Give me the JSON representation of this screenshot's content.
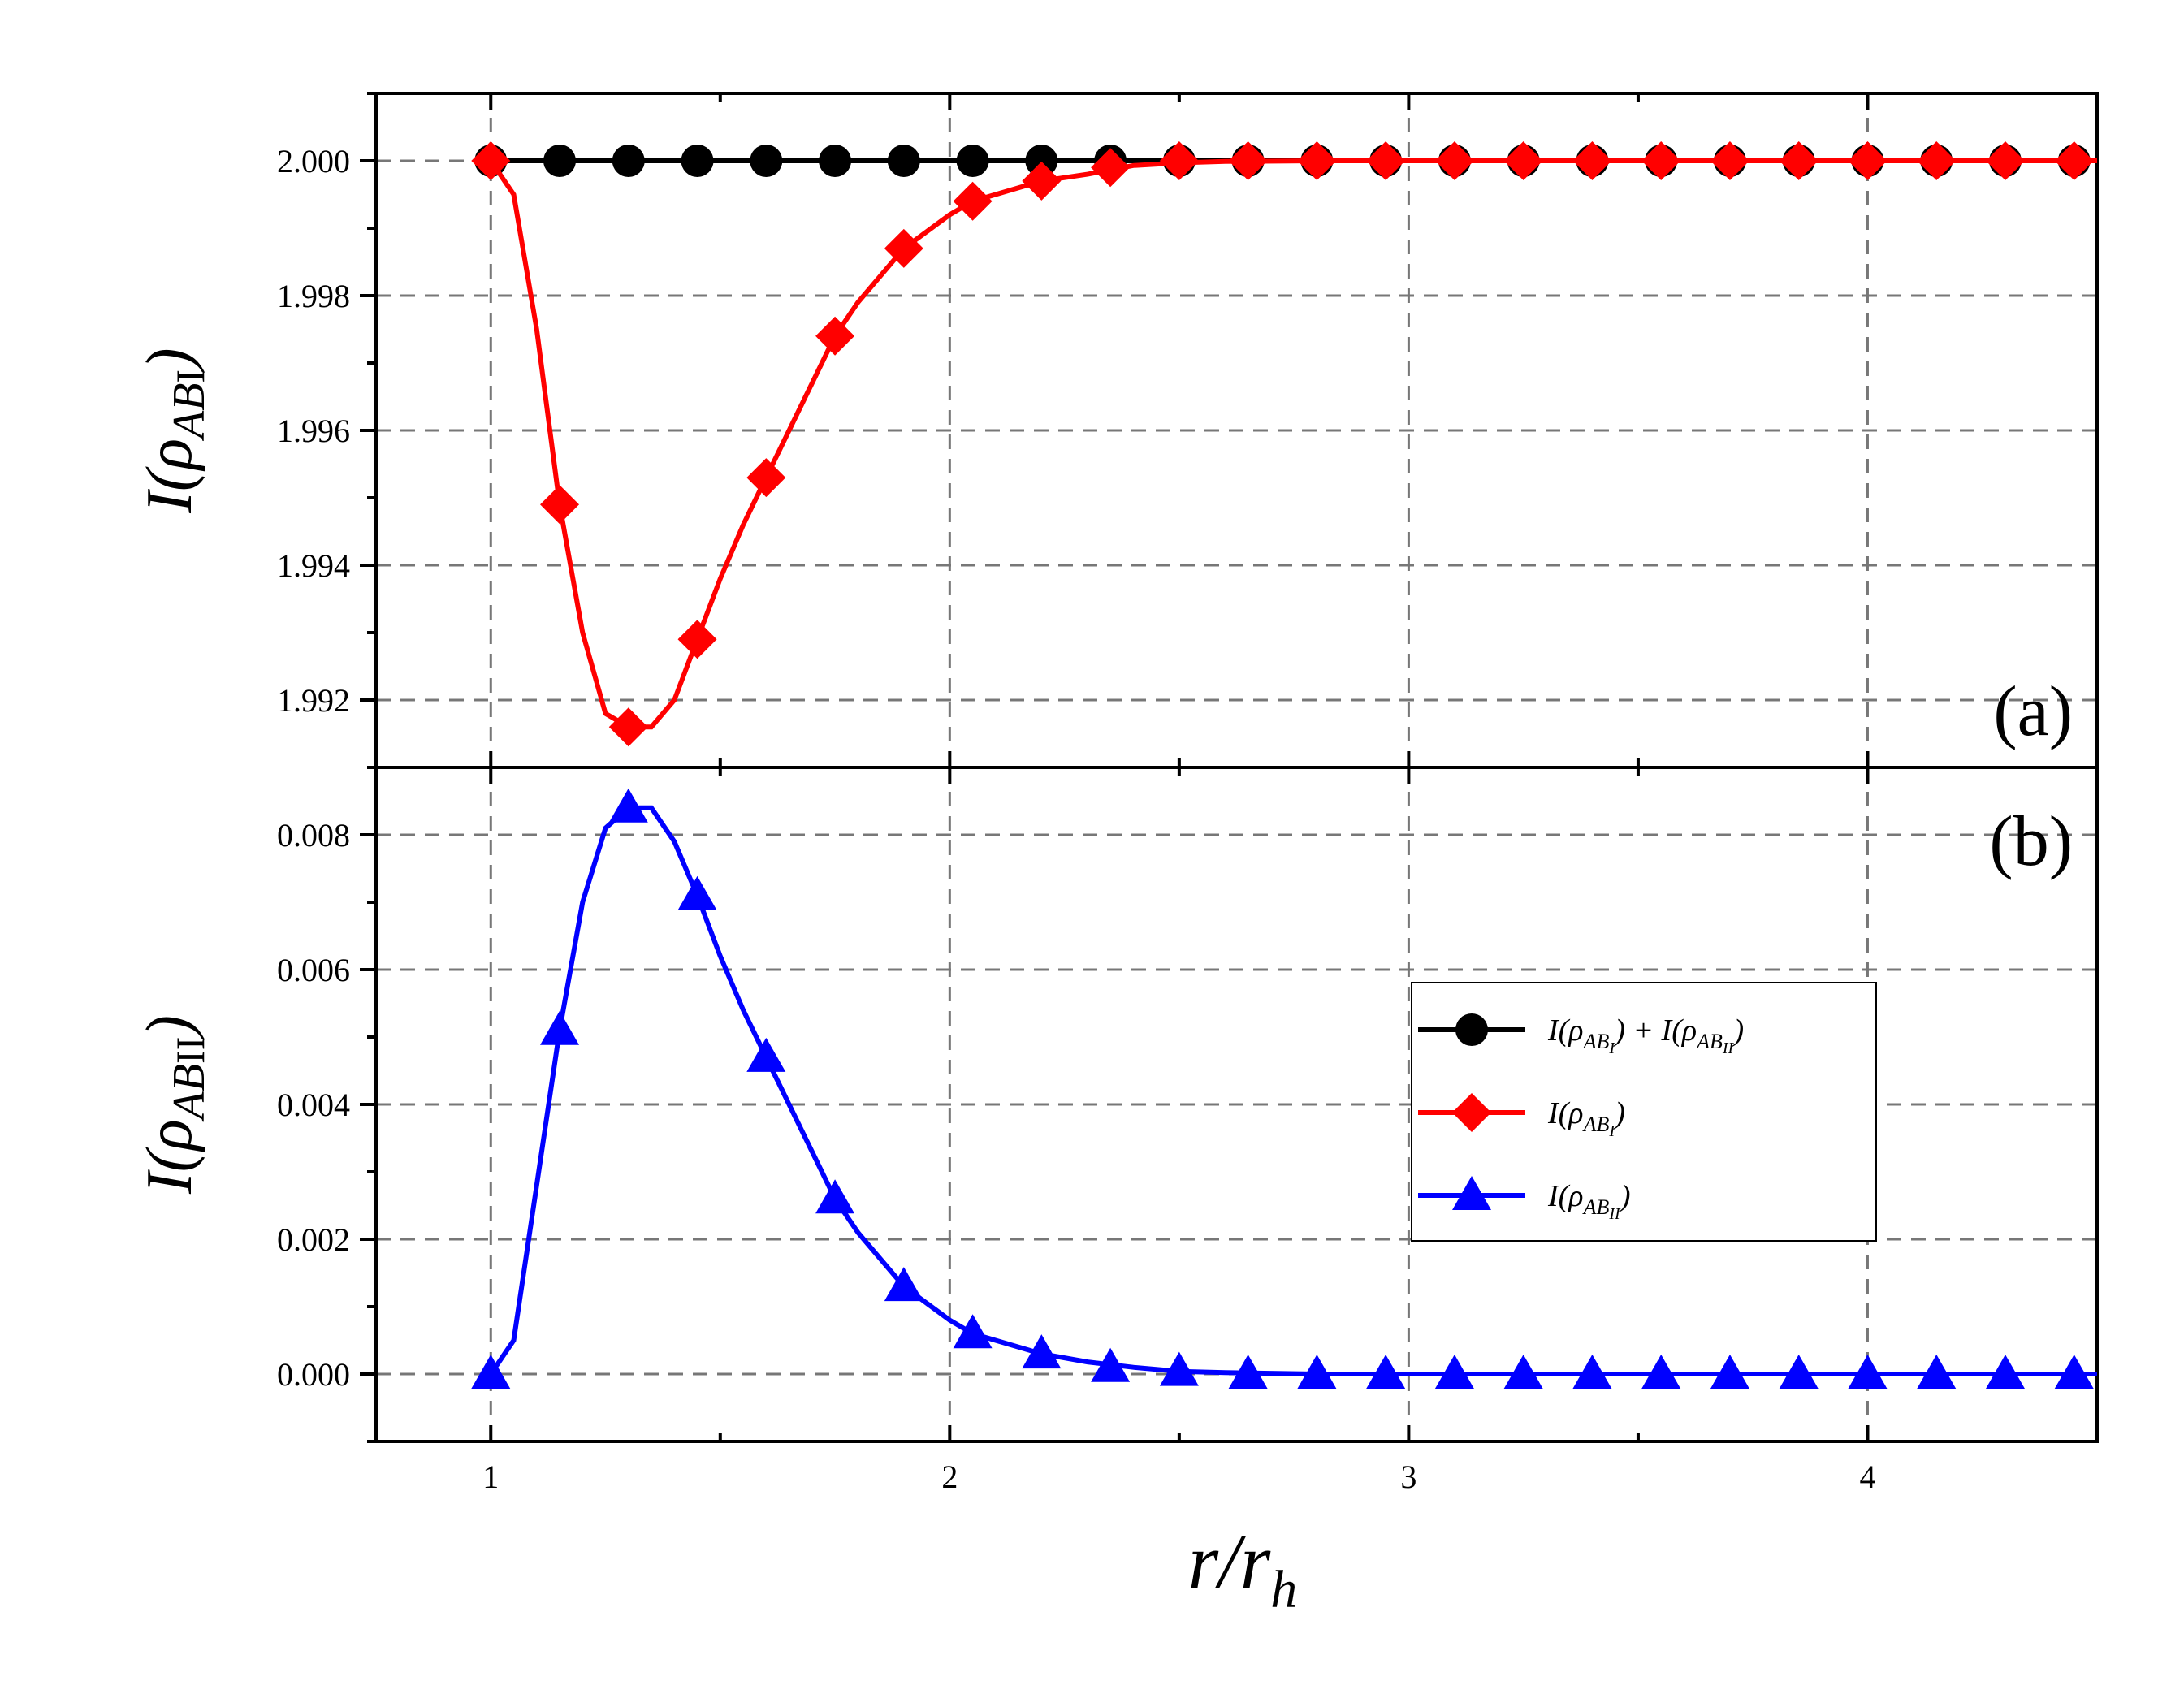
{
  "chart_data": {
    "type": "line",
    "xlabel": "r/r_h",
    "xlabel_main": "r/r",
    "xlabel_sub": "h",
    "xlim": [
      0.75,
      4.5
    ],
    "xticks": [
      1,
      2,
      3,
      4
    ],
    "xtick_labels": [
      "1",
      "2",
      "3",
      "4"
    ],
    "panels": [
      {
        "label": "(a)",
        "ylabel": "I(ρ_ABI)",
        "ylabel_prefix": "I(",
        "ylabel_rho": "ρ",
        "ylabel_sub": "AB",
        "ylabel_roman": "I",
        "ylabel_suffix": ")",
        "ylim": [
          1.991,
          2.001
        ],
        "yticks": [
          1.992,
          1.994,
          1.996,
          1.998,
          2.0
        ],
        "ytick_labels": [
          "1.992",
          "1.994",
          "1.996",
          "1.998",
          "2.000"
        ],
        "series": [
          {
            "name": "I(ρ_ABI) + I(ρ_ABII)",
            "color": "#000000",
            "marker": "circle",
            "x": [
              1.0,
              1.15,
              1.3,
              1.45,
              1.6,
              1.75,
              1.9,
              2.05,
              2.2,
              2.35,
              2.5,
              2.65,
              2.8,
              2.95,
              3.1,
              3.25,
              3.4,
              3.55,
              3.7,
              3.85,
              4.0,
              4.15,
              4.3,
              4.45
            ],
            "values": [
              2.0,
              2.0,
              2.0,
              2.0,
              2.0,
              2.0,
              2.0,
              2.0,
              2.0,
              2.0,
              2.0,
              2.0,
              2.0,
              2.0,
              2.0,
              2.0,
              2.0,
              2.0,
              2.0,
              2.0,
              2.0,
              2.0,
              2.0,
              2.0
            ]
          },
          {
            "name": "I(ρ_ABI)",
            "color": "#ff0000",
            "marker": "diamond",
            "x": [
              1.0,
              1.15,
              1.3,
              1.45,
              1.6,
              1.75,
              1.9,
              2.05,
              2.2,
              2.35,
              2.5,
              2.65,
              2.8,
              2.95,
              3.1,
              3.25,
              3.4,
              3.55,
              3.7,
              3.85,
              4.0,
              4.15,
              4.3,
              4.45
            ],
            "values": [
              2.0,
              1.9949,
              1.9916,
              1.9929,
              1.9953,
              1.9974,
              1.9987,
              1.9994,
              1.9997,
              1.9999,
              2.0,
              2.0,
              2.0,
              2.0,
              2.0,
              2.0,
              2.0,
              2.0,
              2.0,
              2.0,
              2.0,
              2.0,
              2.0,
              2.0
            ],
            "curve_x": [
              1.0,
              1.05,
              1.1,
              1.15,
              1.2,
              1.25,
              1.3,
              1.35,
              1.4,
              1.45,
              1.5,
              1.55,
              1.6,
              1.7,
              1.75,
              1.8,
              1.9,
              2.0,
              2.05,
              2.1,
              2.2,
              2.3,
              2.4,
              2.5,
              2.6,
              2.8,
              3.0,
              3.5,
              4.0,
              4.5
            ],
            "curve_y": [
              2.0,
              1.9995,
              1.9975,
              1.9949,
              1.993,
              1.9918,
              1.9916,
              1.9916,
              1.992,
              1.9929,
              1.9938,
              1.9946,
              1.9953,
              1.9967,
              1.9974,
              1.9979,
              1.9987,
              1.9992,
              1.9994,
              1.9995,
              1.9997,
              1.9998,
              1.99993,
              1.99997,
              1.99999,
              2.0,
              2.0,
              2.0,
              2.0,
              2.0
            ]
          }
        ]
      },
      {
        "label": "(b)",
        "ylabel": "I(ρ_ABII)",
        "ylabel_prefix": "I(",
        "ylabel_rho": "ρ",
        "ylabel_sub": "AB",
        "ylabel_roman": "II",
        "ylabel_suffix": ")",
        "ylim": [
          -0.001,
          0.009
        ],
        "yticks": [
          0.0,
          0.002,
          0.004,
          0.006,
          0.008
        ],
        "ytick_labels": [
          "0.000",
          "0.002",
          "0.004",
          "0.006",
          "0.008"
        ],
        "series": [
          {
            "name": "I(ρ_ABII)",
            "color": "#0000ff",
            "marker": "triangle",
            "x": [
              1.0,
              1.15,
              1.3,
              1.45,
              1.6,
              1.75,
              1.9,
              2.05,
              2.2,
              2.35,
              2.5,
              2.65,
              2.8,
              2.95,
              3.1,
              3.25,
              3.4,
              3.55,
              3.7,
              3.85,
              4.0,
              4.15,
              4.3,
              4.45
            ],
            "values": [
              0.0,
              0.0051,
              0.0084,
              0.0071,
              0.0047,
              0.0026,
              0.0013,
              0.0006,
              0.0003,
              0.0001,
              4e-05,
              0.0,
              0.0,
              0.0,
              0.0,
              0.0,
              0.0,
              0.0,
              0.0,
              0.0,
              0.0,
              0.0,
              0.0,
              0.0
            ],
            "curve_x": [
              1.0,
              1.05,
              1.1,
              1.15,
              1.2,
              1.25,
              1.3,
              1.35,
              1.4,
              1.45,
              1.5,
              1.55,
              1.6,
              1.7,
              1.75,
              1.8,
              1.9,
              2.0,
              2.05,
              2.1,
              2.2,
              2.3,
              2.4,
              2.5,
              2.6,
              2.8,
              3.0,
              3.5,
              4.0,
              4.5
            ],
            "curve_y": [
              0.0,
              0.0005,
              0.0028,
              0.0051,
              0.007,
              0.0081,
              0.0084,
              0.0084,
              0.0079,
              0.0071,
              0.0062,
              0.0054,
              0.0047,
              0.0033,
              0.0026,
              0.0021,
              0.0013,
              0.0008,
              0.0006,
              0.0005,
              0.0003,
              0.00018,
              0.0001,
              4e-05,
              2e-05,
              0.0,
              0.0,
              0.0,
              0.0,
              0.0
            ]
          }
        ]
      }
    ],
    "legend": {
      "placement": "right-center of panel (b)",
      "entries": [
        {
          "label": "I(ρ_ABI) + I(ρ_ABII)",
          "color": "#000000",
          "marker": "circle",
          "parts": [
            {
              "t": "I(ρ",
              "sub": false
            },
            {
              "t": "AB",
              "sub": true
            },
            {
              "t": "I",
              "sub2": true
            },
            {
              "t": ") + I(ρ",
              "sub": false
            },
            {
              "t": "AB",
              "sub": true
            },
            {
              "t": "II",
              "sub2": true
            },
            {
              "t": ")",
              "sub": false
            }
          ]
        },
        {
          "label": "I(ρ_ABI)",
          "color": "#ff0000",
          "marker": "diamond",
          "parts": [
            {
              "t": "I(ρ",
              "sub": false
            },
            {
              "t": "AB",
              "sub": true
            },
            {
              "t": "I",
              "sub2": true
            },
            {
              "t": ")",
              "sub": false
            }
          ]
        },
        {
          "label": "I(ρ_ABII)",
          "color": "#0000ff",
          "marker": "triangle",
          "parts": [
            {
              "t": "I(ρ",
              "sub": false
            },
            {
              "t": "AB",
              "sub": true
            },
            {
              "t": "II",
              "sub2": true
            },
            {
              "t": ")",
              "sub": false
            }
          ]
        }
      ]
    },
    "grid": true,
    "grid_style": "dashed"
  }
}
